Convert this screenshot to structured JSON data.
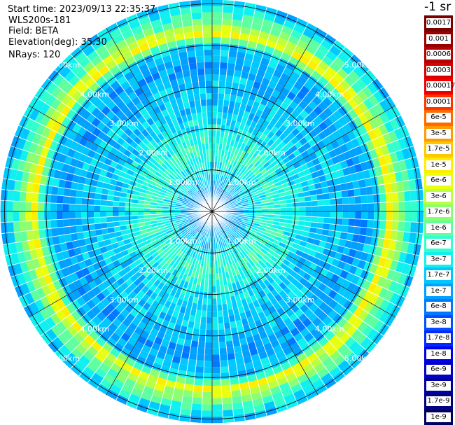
{
  "info": {
    "start_time": "Start time: 2023/09/13 22:35:37",
    "instrument": "WLS200s-181",
    "field": "Field: BETA",
    "elevation": "Elevation(deg): 35.30",
    "nrays": "NRays: 120"
  },
  "colorbar": {
    "unit": "-1 sr",
    "entries": [
      {
        "label": "0.0017",
        "color": "#7a0000"
      },
      {
        "label": "0.001",
        "color": "#990000"
      },
      {
        "label": "0.0006",
        "color": "#b80000"
      },
      {
        "label": "0.0003",
        "color": "#d60000"
      },
      {
        "label": "0.00017",
        "color": "#f20000"
      },
      {
        "label": "0.0001",
        "color": "#ff3300"
      },
      {
        "label": "6e-5",
        "color": "#ff6a00"
      },
      {
        "label": "3e-5",
        "color": "#ff9a00"
      },
      {
        "label": "1.7e-5",
        "color": "#ffc800"
      },
      {
        "label": "1e-5",
        "color": "#ffee00"
      },
      {
        "label": "6e-6",
        "color": "#e8ff10"
      },
      {
        "label": "3e-6",
        "color": "#baff40"
      },
      {
        "label": "1.7e-6",
        "color": "#8cff70"
      },
      {
        "label": "1e-6",
        "color": "#5fffa0"
      },
      {
        "label": "6e-7",
        "color": "#33ffcc"
      },
      {
        "label": "3e-7",
        "color": "#10f0f0"
      },
      {
        "label": "1.7e-7",
        "color": "#00c8ff"
      },
      {
        "label": "1e-7",
        "color": "#00a0ff"
      },
      {
        "label": "6e-8",
        "color": "#0078ff"
      },
      {
        "label": "3e-8",
        "color": "#0050ff"
      },
      {
        "label": "1.7e-8",
        "color": "#0028ff"
      },
      {
        "label": "1e-8",
        "color": "#0000f0"
      },
      {
        "label": "6e-9",
        "color": "#0000c8"
      },
      {
        "label": "3e-9",
        "color": "#0000a0"
      },
      {
        "label": "1.7e-9",
        "color": "#000080"
      },
      {
        "label": "1e-9",
        "color": "#000060"
      }
    ]
  },
  "chart_data": {
    "type": "heatmap",
    "projection": "polar (PPI)",
    "field": "BETA",
    "unit": "-1 sr",
    "elevation_deg": 35.3,
    "n_rays": 120,
    "range_ring_labels": [
      "1.00km",
      "2.00km",
      "3.00km",
      "4.00km",
      "5.00km"
    ],
    "range_rings_km": [
      1,
      2,
      3,
      4,
      5
    ],
    "max_range_km": 5.1,
    "range_bins": 34,
    "radial_profile": [
      {
        "range_km": 0.0,
        "level": "6e-8"
      },
      {
        "range_km": 0.5,
        "level": "1e-7"
      },
      {
        "range_km": 1.0,
        "level": "3e-7"
      },
      {
        "range_km": 1.5,
        "level": "6e-7"
      },
      {
        "range_km": 2.0,
        "level": "3e-7"
      },
      {
        "range_km": 2.5,
        "level": "1.7e-7"
      },
      {
        "range_km": 3.0,
        "level": "1.7e-7"
      },
      {
        "range_km": 3.5,
        "level": "1e-7"
      },
      {
        "range_km": 4.0,
        "level": "1.7e-7"
      },
      {
        "range_km": 4.3,
        "level": "1e-5"
      },
      {
        "range_km": 4.5,
        "level": "1.7e-6"
      },
      {
        "range_km": 5.0,
        "level": "1.7e-7"
      }
    ],
    "colorbar_levels": [
      "0.0017",
      "0.001",
      "0.0006",
      "0.0003",
      "0.00017",
      "0.0001",
      "6e-5",
      "3e-5",
      "1.7e-5",
      "1e-5",
      "6e-6",
      "3e-6",
      "1.7e-6",
      "1e-6",
      "6e-7",
      "3e-7",
      "1.7e-7",
      "1e-7",
      "6e-8",
      "3e-8",
      "1.7e-8",
      "1e-8",
      "6e-9",
      "3e-9",
      "1.7e-9",
      "1e-9"
    ]
  }
}
